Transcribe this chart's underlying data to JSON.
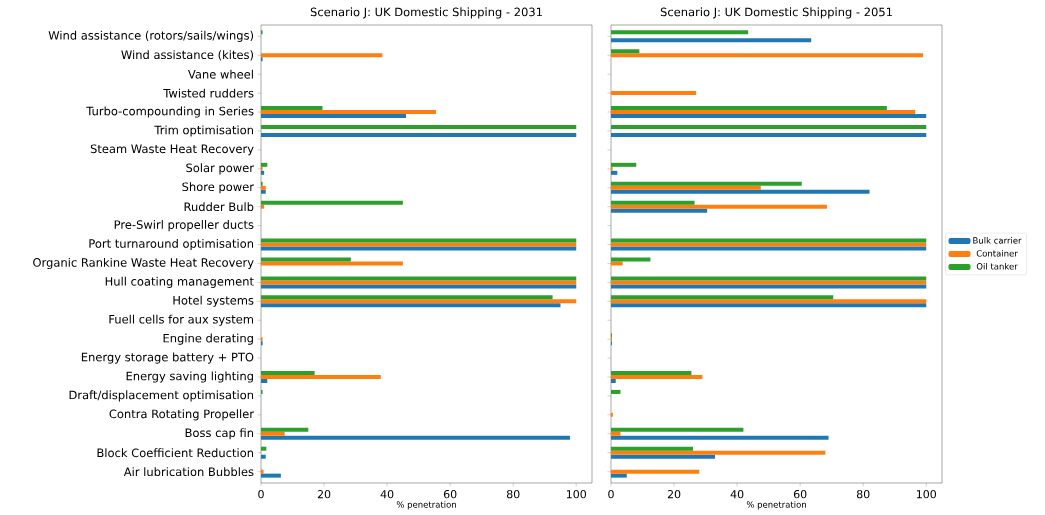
{
  "chart_data": [
    {
      "type": "bar",
      "orientation": "horizontal",
      "title": "Scenario J: UK Domestic Shipping - 2031",
      "xlabel": "% penetration",
      "categories": [
        "Wind assistance (rotors/sails/wings)",
        "Wind assistance (kites)",
        "Vane wheel",
        "Twisted rudders",
        "Turbo-compounding in Series",
        "Trim optimisation",
        "Steam Waste Heat Recovery",
        "Solar power",
        "Shore power",
        "Rudder Bulb",
        "Pre-Swirl propeller ducts",
        "Port turnaround optimisation",
        "Organic Rankine Waste Heat Recovery",
        "Hull coating management",
        "Hotel systems",
        "Fuell cells for aux system",
        "Engine derating",
        "Energy storage battery + PTO",
        "Energy saving lighting",
        "Draft/displacement optimisation",
        "Contra Rotating Propeller",
        "Boss cap fin",
        "Block Coefficient Reduction",
        "Air lubrication Bubbles"
      ],
      "series": [
        {
          "color": "#1f77b4",
          "values": [
            0,
            0.5,
            0,
            0,
            46,
            100,
            0,
            1,
            1.5,
            0,
            0,
            100,
            0,
            100,
            95,
            0,
            0.5,
            0,
            2,
            0,
            0,
            98,
            1.5,
            6.3
          ]
        },
        {
          "color": "#ff7f0e",
          "values": [
            0,
            38.5,
            0,
            0,
            55.5,
            0,
            0,
            0.5,
            1.5,
            1,
            0,
            100,
            45,
            100,
            100,
            0,
            0.5,
            0,
            38,
            0,
            0,
            7.5,
            0,
            0.8
          ]
        },
        {
          "color": "#2ca02c",
          "values": [
            0.5,
            0,
            0,
            0,
            19.5,
            100,
            0,
            2,
            0.5,
            45,
            0,
            100,
            28.5,
            100,
            92.5,
            0,
            0,
            0,
            17,
            0.5,
            0,
            15,
            1.7,
            0
          ]
        }
      ],
      "xlim": [
        0,
        105
      ],
      "xticks": [
        0,
        20,
        40,
        60,
        80,
        100
      ],
      "legend": false
    },
    {
      "type": "bar",
      "orientation": "horizontal",
      "title": "Scenario J: UK Domestic Shipping - 2051",
      "xlabel": "% penetration",
      "categories": [
        null,
        null,
        null,
        null,
        null,
        null,
        null,
        null,
        null,
        null,
        null,
        null,
        null,
        null,
        null,
        null,
        null,
        null,
        null,
        null,
        null,
        null,
        null,
        null
      ],
      "series": [
        {
          "name": "Bulk carrier",
          "color": "#1f77b4",
          "values": [
            63.5,
            0,
            0,
            0,
            100,
            100,
            0,
            2,
            82,
            30.5,
            0,
            100,
            0,
            100,
            100,
            0,
            0.3,
            0,
            1.5,
            0,
            0,
            69,
            33,
            5
          ]
        },
        {
          "name": "Container",
          "color": "#ff7f0e",
          "values": [
            0,
            99,
            0,
            27,
            96.5,
            0,
            0,
            0.5,
            47.5,
            68.5,
            0,
            100,
            3.7,
            100,
            100,
            0,
            0.3,
            0,
            29,
            0,
            0.6,
            3,
            68,
            28
          ]
        },
        {
          "name": "Oil tanker",
          "color": "#2ca02c",
          "values": [
            43.5,
            9,
            0,
            0,
            87.5,
            100,
            0,
            8,
            60.5,
            26.5,
            0,
            100,
            12.5,
            100,
            70.5,
            0,
            0.3,
            0,
            25.5,
            3,
            0,
            42,
            26,
            0
          ]
        }
      ],
      "xlim": [
        0,
        105
      ],
      "xticks": [
        0,
        20,
        40,
        60,
        80,
        100
      ],
      "tick_labels": "x",
      "legend": "right"
    }
  ]
}
